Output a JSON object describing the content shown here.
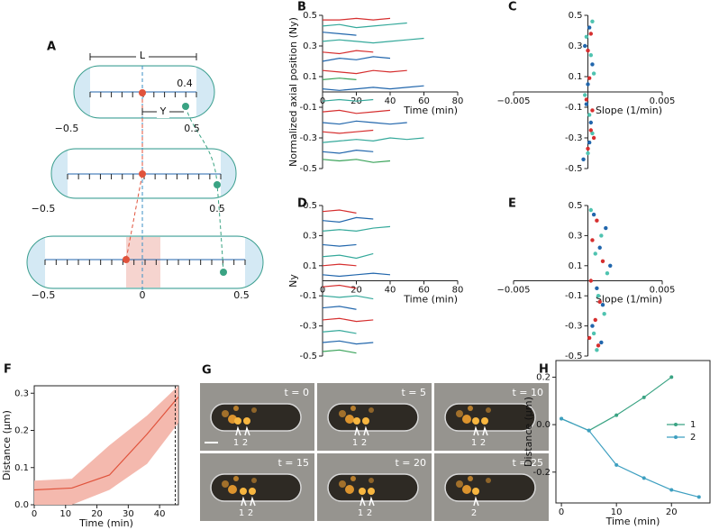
{
  "panel_a": {
    "panel": "A",
    "length_label": "L",
    "position_label": "0.4",
    "offset_label": "Y",
    "cells": [
      {
        "tick_labels": [
          "−0.5",
          "0.5"
        ]
      },
      {
        "tick_labels": [
          "−0.5",
          "0.5"
        ]
      },
      {
        "tick_labels": [
          "−0.5",
          "0",
          "0.5"
        ]
      }
    ]
  },
  "panel_g": {
    "panel": "G",
    "frames": [
      {
        "time": "t = 0",
        "markers": [
          "1",
          "2"
        ]
      },
      {
        "time": "t = 5",
        "markers": [
          "1",
          "2"
        ]
      },
      {
        "time": "t = 10",
        "markers": [
          "1",
          "2"
        ]
      },
      {
        "time": "t = 15",
        "markers": [
          "1",
          "2"
        ]
      },
      {
        "time": "t = 20",
        "markers": [
          "1",
          "2"
        ]
      },
      {
        "time": "t = 25",
        "markers": [
          "2"
        ]
      }
    ]
  },
  "chart_data": [
    {
      "type": "line",
      "panel": "B",
      "spines": "center",
      "xlabel": "Time (min)",
      "ylabel": "Normalized axial position (Ny)",
      "xlim": [
        0,
        80
      ],
      "ylim": [
        -0.5,
        0.5
      ],
      "xticks": [
        0,
        20,
        40,
        60,
        80
      ],
      "yticks": [
        0.5,
        0.3,
        0.1,
        -0.1,
        -0.3,
        -0.5
      ],
      "x": [
        0,
        10,
        20,
        30,
        40,
        50,
        60
      ],
      "series": [
        {
          "color": "#d62f2f",
          "values": [
            0.47,
            0.47,
            0.48,
            0.47,
            0.48,
            null,
            null
          ]
        },
        {
          "color": "#35a99b",
          "values": [
            0.43,
            0.44,
            0.42,
            0.43,
            0.44,
            0.45,
            null
          ]
        },
        {
          "color": "#2166ac",
          "values": [
            0.39,
            0.38,
            0.37,
            null,
            null,
            null,
            null
          ]
        },
        {
          "color": "#35a99b",
          "values": [
            0.33,
            0.34,
            0.33,
            0.32,
            0.33,
            0.34,
            0.35
          ]
        },
        {
          "color": "#d62f2f",
          "values": [
            0.26,
            0.25,
            0.27,
            0.26,
            null,
            null,
            null
          ]
        },
        {
          "color": "#2166ac",
          "values": [
            0.2,
            0.22,
            0.21,
            0.23,
            0.22,
            null,
            null
          ]
        },
        {
          "color": "#d62f2f",
          "values": [
            0.14,
            0.13,
            0.12,
            0.14,
            0.13,
            0.14,
            null
          ]
        },
        {
          "color": "#3aa35a",
          "values": [
            0.08,
            0.09,
            0.08,
            null,
            null,
            null,
            null
          ]
        },
        {
          "color": "#2166ac",
          "values": [
            0.02,
            0.01,
            0.02,
            0.03,
            0.02,
            0.03,
            0.04
          ]
        },
        {
          "color": "#35a99b",
          "values": [
            -0.06,
            -0.05,
            -0.06,
            -0.05,
            null,
            null,
            null
          ]
        },
        {
          "color": "#d62f2f",
          "values": [
            -0.13,
            -0.12,
            -0.14,
            -0.13,
            -0.12,
            null,
            null
          ]
        },
        {
          "color": "#2166ac",
          "values": [
            -0.2,
            -0.21,
            -0.19,
            -0.2,
            -0.21,
            -0.2,
            null
          ]
        },
        {
          "color": "#d62f2f",
          "values": [
            -0.26,
            -0.27,
            -0.26,
            -0.25,
            null,
            null,
            null
          ]
        },
        {
          "color": "#35a99b",
          "values": [
            -0.33,
            -0.32,
            -0.31,
            -0.32,
            -0.3,
            -0.31,
            -0.3
          ]
        },
        {
          "color": "#2166ac",
          "values": [
            -0.39,
            -0.4,
            -0.38,
            -0.39,
            null,
            null,
            null
          ]
        },
        {
          "color": "#3aa35a",
          "values": [
            -0.44,
            -0.45,
            -0.44,
            -0.46,
            -0.45,
            null,
            null
          ]
        }
      ]
    },
    {
      "type": "scatter",
      "panel": "C",
      "spines": "center",
      "xlabel": "Slope (1/min)",
      "xlim": [
        -0.005,
        0.005
      ],
      "ylim": [
        -0.5,
        0.5
      ],
      "xticks": [
        {
          "value": -0.005,
          "label": "−0.005"
        },
        0.005
      ],
      "yticks": [
        0.5,
        0.3,
        0.1,
        -0.1,
        -0.3,
        -0.5
      ],
      "series": [
        {
          "color": "#2166ac",
          "x": [
            0.0001,
            -0.0002,
            0.0003,
            0.0,
            -0.0001,
            0.0002,
            0.0001,
            -0.0003
          ],
          "values": [
            0.42,
            0.3,
            0.18,
            0.05,
            -0.08,
            -0.2,
            -0.33,
            -0.44
          ]
        },
        {
          "color": "#4fc3b0",
          "x": [
            0.0003,
            -0.0001,
            0.0002,
            0.0004,
            -0.0002,
            0.0001,
            0.0003,
            0.0
          ],
          "values": [
            0.46,
            0.36,
            0.24,
            0.12,
            -0.02,
            -0.15,
            -0.27,
            -0.4
          ]
        },
        {
          "color": "#d62f2f",
          "x": [
            0.0002,
            0.0,
            0.0001,
            -0.0001,
            0.0003,
            0.0002,
            0.0,
            0.0004
          ],
          "values": [
            0.38,
            0.27,
            0.09,
            -0.05,
            -0.12,
            -0.25,
            -0.37,
            -0.3
          ]
        }
      ]
    },
    {
      "type": "line",
      "panel": "D",
      "spines": "center",
      "xlabel": "Time (min)",
      "ylabel": "Ny",
      "xlim": [
        0,
        80
      ],
      "ylim": [
        -0.5,
        0.5
      ],
      "xticks": [
        0,
        20,
        40,
        60,
        80
      ],
      "yticks": [
        0.5,
        0.3,
        0.1,
        -0.1,
        -0.3,
        -0.5
      ],
      "x": [
        0,
        10,
        20,
        30,
        40
      ],
      "series": [
        {
          "color": "#d62f2f",
          "values": [
            0.46,
            0.47,
            0.45,
            null,
            null
          ]
        },
        {
          "color": "#2166ac",
          "values": [
            0.4,
            0.39,
            0.42,
            0.41,
            null
          ]
        },
        {
          "color": "#35a99b",
          "values": [
            0.33,
            0.34,
            0.33,
            0.35,
            0.36
          ]
        },
        {
          "color": "#2166ac",
          "values": [
            0.24,
            0.23,
            0.24,
            null,
            null
          ]
        },
        {
          "color": "#35a99b",
          "values": [
            0.16,
            0.17,
            0.15,
            0.18,
            null
          ]
        },
        {
          "color": "#d62f2f",
          "values": [
            0.1,
            0.11,
            0.1,
            null,
            null
          ]
        },
        {
          "color": "#2166ac",
          "values": [
            0.04,
            0.03,
            0.04,
            0.05,
            0.04
          ]
        },
        {
          "color": "#d62f2f",
          "values": [
            -0.04,
            -0.03,
            -0.05,
            null,
            null
          ]
        },
        {
          "color": "#35a99b",
          "values": [
            -0.1,
            -0.11,
            -0.1,
            -0.12,
            null
          ]
        },
        {
          "color": "#2166ac",
          "values": [
            -0.18,
            -0.17,
            -0.19,
            null,
            null
          ]
        },
        {
          "color": "#d62f2f",
          "values": [
            -0.26,
            -0.25,
            -0.27,
            -0.26,
            null
          ]
        },
        {
          "color": "#35a99b",
          "values": [
            -0.34,
            -0.33,
            -0.35,
            null,
            null
          ]
        },
        {
          "color": "#2166ac",
          "values": [
            -0.41,
            -0.4,
            -0.42,
            -0.41,
            null
          ]
        },
        {
          "color": "#3aa35a",
          "values": [
            -0.47,
            -0.46,
            -0.48,
            null,
            null
          ]
        }
      ]
    },
    {
      "type": "scatter",
      "panel": "E",
      "spines": "center",
      "xlabel": "Slope (1/min)",
      "xlim": [
        -0.005,
        0.005
      ],
      "ylim": [
        -0.5,
        0.5
      ],
      "xticks": [
        {
          "value": -0.005,
          "label": "−0.005"
        },
        0.005
      ],
      "yticks": [
        0.5,
        0.3,
        0.1,
        -0.1,
        -0.3,
        -0.5
      ],
      "series": [
        {
          "color": "#2166ac",
          "x": [
            0.0004,
            0.0012,
            0.0008,
            0.0015,
            0.0006,
            0.001,
            0.0003,
            0.0009
          ],
          "values": [
            0.44,
            0.35,
            0.22,
            0.1,
            -0.05,
            -0.16,
            -0.3,
            -0.41
          ]
        },
        {
          "color": "#4fc3b0",
          "x": [
            0.0002,
            0.0009,
            0.0005,
            0.0013,
            0.0007,
            0.0011,
            0.0004,
            0.0006
          ],
          "values": [
            0.47,
            0.3,
            0.18,
            0.05,
            -0.1,
            -0.22,
            -0.35,
            -0.46
          ]
        },
        {
          "color": "#d62f2f",
          "x": [
            0.0006,
            0.0003,
            0.001,
            0.0002,
            0.0008,
            0.0005,
            0.0001,
            0.0007
          ],
          "values": [
            0.4,
            0.27,
            0.13,
            0.0,
            -0.14,
            -0.26,
            -0.38,
            -0.43
          ]
        }
      ]
    },
    {
      "type": "line",
      "panel": "F",
      "spines": "box",
      "xlabel": "Time (min)",
      "ylabel": "Distance (μm)",
      "xlim": [
        0,
        46
      ],
      "ylim": [
        0,
        0.32
      ],
      "xticks": [
        0,
        10,
        20,
        30,
        40
      ],
      "yticks": [
        {
          "value": 0,
          "label": "0.0"
        },
        0.1,
        0.2,
        0.3
      ],
      "vline": 45,
      "x": [
        0,
        12,
        24,
        36,
        46
      ],
      "series": [
        {
          "color": "#e0533c",
          "band_color": "#f4b9ae",
          "values": [
            0.04,
            0.045,
            0.08,
            0.19,
            0.29
          ],
          "lower": [
            0.0,
            0.0,
            0.04,
            0.11,
            0.22
          ],
          "upper": [
            0.065,
            0.07,
            0.16,
            0.24,
            0.32
          ]
        }
      ]
    },
    {
      "type": "line",
      "panel": "H",
      "spines": "box",
      "xlabel": "Time (min)",
      "ylabel": "Distance (μm)",
      "legend": "right",
      "xlim": [
        -1,
        27
      ],
      "ylim": [
        -0.33,
        0.27
      ],
      "xticks": [
        0,
        10,
        20
      ],
      "yticks": [
        0.2,
        {
          "value": 0,
          "label": "0.0"
        },
        -0.2
      ],
      "series": [
        {
          "name": "1",
          "color": "#3aa383",
          "marker": true,
          "x": [
            0,
            5,
            10,
            15,
            20
          ],
          "values": [
            0.025,
            -0.025,
            0.04,
            0.115,
            0.2
          ]
        },
        {
          "name": "2",
          "color": "#3d9fc0",
          "marker": true,
          "x": [
            0,
            5,
            10,
            15,
            20,
            25
          ],
          "values": [
            0.025,
            -0.025,
            -0.17,
            -0.225,
            -0.275,
            -0.305
          ]
        }
      ]
    }
  ]
}
